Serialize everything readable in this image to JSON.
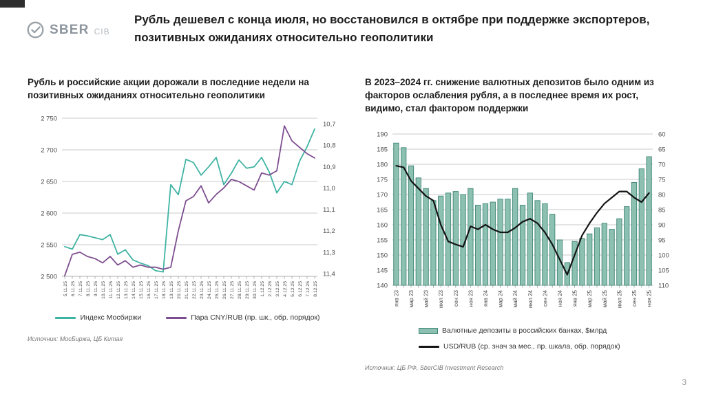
{
  "page": {
    "number": "3"
  },
  "logo": {
    "brand": "SBER",
    "suffix": "CIB"
  },
  "header": {
    "title": "Рубль дешевел с конца июля, но восстановился в октябре при поддержке экспортеров, позитивных ожиданиях относительно геополитики"
  },
  "left_panel": {
    "source": "Источник: МосБиржа, ЦБ Китая"
  },
  "right_panel": {
    "source": "Источник: ЦБ РФ, SberCIB Investment Research"
  },
  "colors": {
    "teal_line": "#3FB3A3",
    "purple_line": "#7D4E8F",
    "bar_fill": "#8CC0B1",
    "bar_stroke": "#3F8577",
    "black_line": "#141414",
    "grid": "#c9c9c9"
  },
  "chart_data": [
    {
      "type": "line",
      "title": "Рубль и российские акции дорожали в последние недели на позитивных ожиданиях относительно геополитики",
      "x": [
        "5.11.25",
        "6.11.25",
        "7.11.25",
        "8.11.25",
        "9.11.25",
        "10.11.25",
        "11.11.25",
        "12.11.25",
        "13.11.25",
        "14.11.25",
        "15.11.25",
        "16.11.25",
        "17.11.25",
        "18.11.25",
        "19.11.25",
        "20.11.25",
        "21.11.25",
        "22.11.25",
        "23.11.25",
        "24.11.25",
        "25.11.25",
        "26.11.25",
        "27.11.25",
        "28.11.25",
        "29.11.25",
        "30.11.25",
        "1.12.25",
        "2.12.25",
        "3.12.25",
        "4.12.25",
        "5.12.25",
        "6.12.25",
        "7.12.25",
        "8.12.25"
      ],
      "series": [
        {
          "name": "Индекс Мосбиржи",
          "type": "line",
          "axis": "left",
          "color": "#3FB3A3",
          "width": 1.8,
          "values": [
            2547,
            2543,
            2566,
            2564,
            2561,
            2558,
            2566,
            2535,
            2542,
            2526,
            2521,
            2517,
            2509,
            2507,
            2645,
            2629,
            2685,
            2680,
            2660,
            2673,
            2688,
            2645,
            2663,
            2684,
            2671,
            2673,
            2688,
            2665,
            2632,
            2650,
            2645,
            2682,
            2705,
            2733
          ]
        },
        {
          "name": "Пара CNY/RUB (пр. шк., обр. порядок)",
          "type": "line",
          "axis": "right",
          "color": "#7D4E8F",
          "width": 1.8,
          "values": [
            11.41,
            11.31,
            11.3,
            11.32,
            11.33,
            11.35,
            11.32,
            11.36,
            11.34,
            11.37,
            11.36,
            11.37,
            11.37,
            11.38,
            11.37,
            11.2,
            11.06,
            11.04,
            10.99,
            11.07,
            11.03,
            11.0,
            10.96,
            10.97,
            10.99,
            11.01,
            10.93,
            10.94,
            10.92,
            10.71,
            10.78,
            10.81,
            10.84,
            10.86
          ]
        }
      ],
      "left_axis": {
        "ticks": [
          "2 750",
          "2 700",
          "2 650",
          "2 600",
          "2 550",
          "2 500"
        ],
        "min": 2500,
        "max": 2750
      },
      "right_axis": {
        "ticks": [
          "10,7",
          "10,8",
          "10,9",
          "11,0",
          "11,1",
          "11,2",
          "11,3",
          "11,4"
        ],
        "min": 10.7,
        "max": 11.4,
        "reversed": true
      },
      "grid": true,
      "legend_position": "bottom"
    },
    {
      "type": "combo",
      "title": "В 2023–2024 гг. снижение валютных депозитов было одним из факторов ослабления рубля, а в последнее время их рост, видимо, стал фактором поддержки",
      "x": [
        "янв 23",
        "фев 23",
        "мар 23",
        "апр 23",
        "май 23",
        "июн 23",
        "июл 23",
        "авг 23",
        "сен 23",
        "окт 23",
        "ноя 23",
        "дек 23",
        "янв 24",
        "фев 24",
        "мар 24",
        "апр 24",
        "май 24",
        "июн 24",
        "июл 24",
        "авг 24",
        "сен 24",
        "окт 24",
        "ноя 24",
        "дек 24",
        "янв 25",
        "фев 25",
        "мар 25",
        "апр 25",
        "май 25",
        "июн 25",
        "июл 25",
        "авг 25",
        "сен 25",
        "окт 25",
        "ноя 25"
      ],
      "x_tick_every": 2,
      "series": [
        {
          "name": "Валютные депозиты в российских банках, $млрд",
          "type": "bar",
          "axis": "left",
          "color": "#8CC0B1",
          "stroke": "#3F8577",
          "values": [
            187,
            185.5,
            179.5,
            175.5,
            172,
            168,
            169.5,
            170.5,
            171,
            170,
            172,
            166.5,
            167,
            167.5,
            168.5,
            168.5,
            172,
            166.5,
            170.5,
            168,
            167,
            163.5,
            155,
            147.5,
            154.5,
            155.5,
            157,
            159,
            160.5,
            158.5,
            162,
            166,
            174,
            178.5,
            182.5
          ]
        },
        {
          "name": "USD/RUB (ср. знач за мес., пр. шкала, обр. порядок)",
          "type": "line",
          "axis": "right",
          "color": "#141414",
          "width": 2.2,
          "values": [
            70.5,
            71,
            75.5,
            78,
            80.5,
            82,
            90,
            95.5,
            96.5,
            97.3,
            90.5,
            91.5,
            90,
            91.5,
            92.5,
            92.5,
            91,
            89,
            88,
            89.5,
            92.5,
            96.5,
            101.5,
            106.5,
            100,
            93.5,
            89.5,
            86,
            83,
            81,
            79,
            79,
            81,
            82.5,
            79.5
          ]
        }
      ],
      "left_axis": {
        "ticks": [
          "190",
          "185",
          "180",
          "175",
          "170",
          "165",
          "160",
          "155",
          "150",
          "145",
          "140"
        ],
        "min": 140,
        "max": 190
      },
      "right_axis": {
        "ticks": [
          "60",
          "65",
          "70",
          "75",
          "80",
          "85",
          "90",
          "95",
          "100",
          "105",
          "110"
        ],
        "min": 60,
        "max": 110,
        "reversed": true
      },
      "grid": true,
      "legend_position": "bottom"
    }
  ]
}
